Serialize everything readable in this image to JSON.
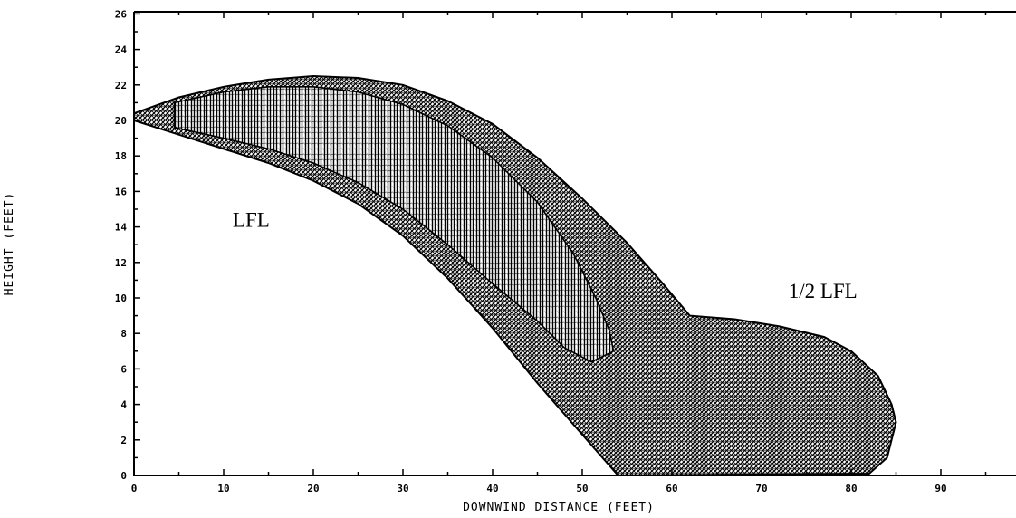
{
  "chart_data": {
    "type": "area",
    "xlabel": "DOWNWIND DISTANCE (FEET)",
    "ylabel": "HEIGHT (FEET)",
    "xlim": [
      0,
      99
    ],
    "ylim": [
      0,
      26
    ],
    "xticks": [
      0,
      10,
      20,
      30,
      40,
      50,
      60,
      70,
      80,
      90
    ],
    "yticks": [
      0,
      2,
      4,
      6,
      8,
      10,
      12,
      14,
      16,
      18,
      20,
      22,
      24,
      26
    ],
    "xtick_labels": [
      "0",
      "10",
      "20",
      "30",
      "40",
      "50",
      "60",
      "70",
      "80",
      "90"
    ],
    "ytick_labels": [
      "0",
      "2",
      "4",
      "6",
      "8",
      "10",
      "12",
      "14",
      "16",
      "18",
      "20",
      "22",
      "24",
      "26"
    ],
    "grid": false,
    "annotations": [
      {
        "text": "LFL",
        "x": 11,
        "y": 14
      },
      {
        "text": "1/2 LFL",
        "x": 73,
        "y": 10
      }
    ],
    "series": [
      {
        "name": "1/2 LFL",
        "fill": "crosshatch",
        "color": "#000000",
        "outline": [
          [
            0,
            20.4
          ],
          [
            5,
            21.3
          ],
          [
            10,
            21.9
          ],
          [
            15,
            22.3
          ],
          [
            20,
            22.5
          ],
          [
            25,
            22.4
          ],
          [
            30,
            22.0
          ],
          [
            35,
            21.1
          ],
          [
            40,
            19.8
          ],
          [
            45,
            17.9
          ],
          [
            50,
            15.6
          ],
          [
            55,
            13.1
          ],
          [
            59,
            10.8
          ],
          [
            62,
            9.0
          ],
          [
            67,
            8.8
          ],
          [
            72,
            8.4
          ],
          [
            77,
            7.8
          ],
          [
            80,
            7.0
          ],
          [
            83,
            5.6
          ],
          [
            84.5,
            4.0
          ],
          [
            85,
            3.0
          ],
          [
            84,
            1.0
          ],
          [
            82,
            0.1
          ],
          [
            54,
            0
          ],
          [
            50,
            2.3
          ],
          [
            45,
            5.2
          ],
          [
            40,
            8.3
          ],
          [
            35,
            11.1
          ],
          [
            30,
            13.5
          ],
          [
            25,
            15.3
          ],
          [
            20,
            16.6
          ],
          [
            15,
            17.6
          ],
          [
            10,
            18.4
          ],
          [
            5,
            19.2
          ],
          [
            0,
            20.0
          ]
        ]
      },
      {
        "name": "LFL",
        "fill": "vertical-hatch",
        "color": "#000000",
        "outline": [
          [
            4.5,
            21.0
          ],
          [
            10,
            21.6
          ],
          [
            15,
            21.9
          ],
          [
            20,
            21.9
          ],
          [
            25,
            21.6
          ],
          [
            30,
            20.9
          ],
          [
            35,
            19.7
          ],
          [
            40,
            17.9
          ],
          [
            45,
            15.4
          ],
          [
            49,
            12.5
          ],
          [
            51.5,
            10.0
          ],
          [
            53,
            8.2
          ],
          [
            53.5,
            7.0
          ],
          [
            51,
            6.4
          ],
          [
            48,
            7.2
          ],
          [
            45,
            8.7
          ],
          [
            40,
            10.8
          ],
          [
            35,
            13.0
          ],
          [
            30,
            15.0
          ],
          [
            25,
            16.5
          ],
          [
            20,
            17.6
          ],
          [
            15,
            18.4
          ],
          [
            10,
            19.0
          ],
          [
            4.5,
            19.6
          ]
        ]
      }
    ]
  }
}
